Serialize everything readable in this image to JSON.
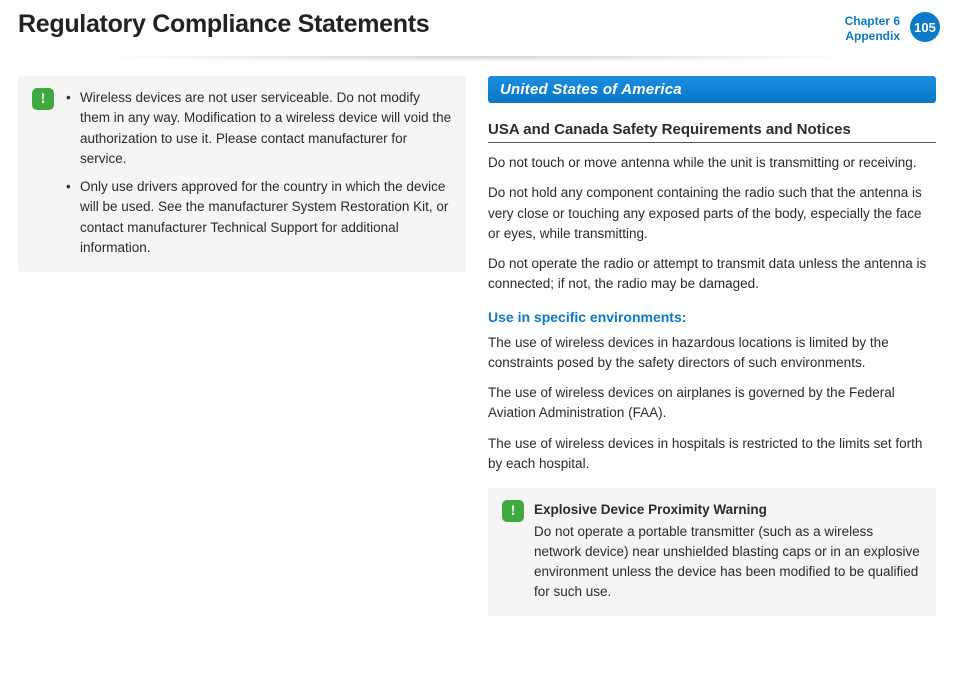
{
  "header": {
    "title": "Regulatory Compliance Statements",
    "chapter_line1": "Chapter 6",
    "chapter_line2": "Appendix",
    "page_number": "105"
  },
  "left_callout": {
    "icon_glyph": "!",
    "items": [
      "Wireless devices are not user serviceable. Do not modify them in any way. Modification to a wireless device will void the authorization to use it. Please contact manufacturer for service.",
      "Only use drivers approved for the country in which the device will be used. See the manufacturer System Restoration Kit, or contact manufacturer Technical Support for additional information."
    ]
  },
  "right": {
    "section_bar": "United States of America",
    "subheading": "USA and Canada Safety Requirements and Notices",
    "paras_a": [
      "Do not touch or move antenna while the unit is transmitting or receiving.",
      "Do not hold any component containing the radio such that the antenna is very close or touching any exposed parts of the body, especially the face or eyes, while transmitting.",
      "Do not operate the radio or attempt to transmit data unless the antenna is connected; if not, the radio may be damaged."
    ],
    "blue_sub": "Use in specific environments:",
    "paras_b": [
      "The use of wireless devices in hazardous locations is limited by the constraints posed by the safety directors of such environments.",
      "The use of wireless devices on airplanes is governed by the Federal Aviation Administration (FAA).",
      "The use of wireless devices in hospitals is restricted to the limits set forth by each hospital."
    ],
    "callout": {
      "icon_glyph": "!",
      "title": "Explosive Device Proximity Warning",
      "body": "Do not operate a portable transmitter (such as a wireless network device) near unshielded blasting caps or in an explosive environment unless the device has been modified to be qualified for such use."
    }
  },
  "colors": {
    "brand_blue": "#0a7bc9",
    "warn_green": "#3fa83f",
    "callout_bg": "#f5f5f5"
  }
}
